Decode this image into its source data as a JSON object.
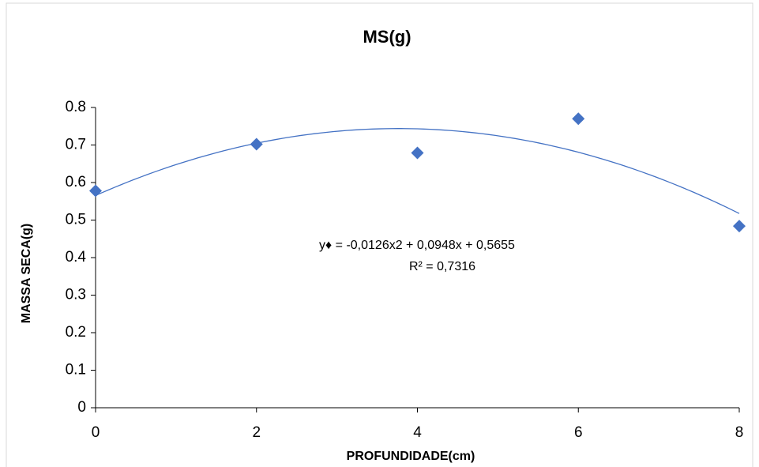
{
  "chart_data": {
    "type": "scatter",
    "title": "MS(g)",
    "x_label": "PROFUNDIDADE(cm)",
    "y_label": "MASSA SECA(g)",
    "series": [
      {
        "name": "MS(g)",
        "color": "#4472c4",
        "x": [
          0,
          2,
          4,
          6,
          8
        ],
        "values": [
          0.578,
          0.702,
          0.679,
          0.77,
          0.484
        ]
      }
    ],
    "trendline": {
      "type": "polynomial",
      "color": "#4472c4",
      "coefficients": [
        -0.0126,
        0.0948,
        0.5655
      ],
      "equation": "y♦ = -0,0126x2 + 0,0948x + 0,5655",
      "r2_text": "R² = 0,7316"
    },
    "xlim": [
      0,
      8
    ],
    "xticks": [
      0,
      2,
      4,
      6,
      8
    ],
    "ylim": [
      0,
      0.8
    ],
    "yticks": [
      0,
      0.1,
      0.2,
      0.3,
      0.4,
      0.5,
      0.6,
      0.7,
      0.8
    ],
    "grid": false
  }
}
